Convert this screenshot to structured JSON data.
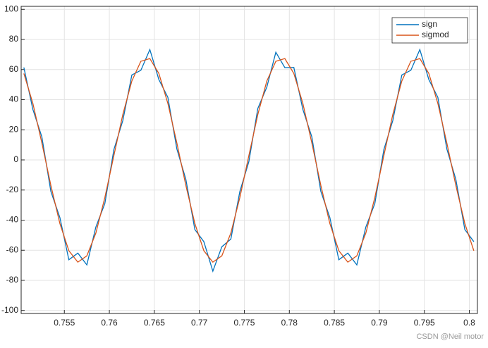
{
  "chart_data": {
    "type": "line",
    "x": [
      0.7505,
      0.7515,
      0.7525,
      0.7535,
      0.7545,
      0.7555,
      0.7565,
      0.7575,
      0.7585,
      0.7595,
      0.7605,
      0.7615,
      0.7625,
      0.7635,
      0.7645,
      0.7655,
      0.7665,
      0.7675,
      0.7685,
      0.7695,
      0.7705,
      0.7715,
      0.7725,
      0.7735,
      0.7745,
      0.7755,
      0.7765,
      0.7775,
      0.7785,
      0.7795,
      0.7805,
      0.7815,
      0.7825,
      0.7835,
      0.7845,
      0.7855,
      0.7865,
      0.7875,
      0.7885,
      0.7895,
      0.7905,
      0.7915,
      0.7925,
      0.7935,
      0.7945,
      0.7955,
      0.7965,
      0.7975,
      0.7985,
      0.7995,
      0.8005
    ],
    "series": [
      {
        "name": "sign",
        "color": "#0072BD",
        "values": [
          61.4,
          33.6,
          15.3,
          -20.9,
          -38.2,
          -66.3,
          -61.9,
          -69.7,
          -44.6,
          -29.0,
          6.8,
          26.2,
          56.4,
          59.5,
          73.3,
          53.4,
          41.6,
          7.3,
          -12.9,
          -46.2,
          -54.3,
          -73.9,
          -57.7,
          -52.6,
          -21.0,
          -1.2,
          34.2,
          48.4,
          71.5,
          61.3,
          61.4,
          33.6,
          15.3,
          -20.9,
          -38.2,
          -66.3,
          -61.9,
          -69.7,
          -44.6,
          -29.0,
          6.8,
          26.2,
          56.4,
          59.5,
          73.3,
          53.4,
          41.6,
          7.3,
          -12.9,
          -46.2,
          -54.3
        ]
      },
      {
        "name": "sigmod",
        "color": "#D95319",
        "values": [
          57.4,
          37.6,
          11.3,
          -16.9,
          -42.2,
          -60.3,
          -67.9,
          -63.7,
          -48.6,
          -25.0,
          2.8,
          30.2,
          52.4,
          65.5,
          67.3,
          57.4,
          37.6,
          11.3,
          -16.9,
          -42.2,
          -60.3,
          -67.9,
          -63.7,
          -48.6,
          -25.0,
          2.8,
          30.2,
          52.4,
          65.5,
          67.3,
          57.4,
          37.6,
          11.3,
          -16.9,
          -42.2,
          -60.3,
          -67.9,
          -63.7,
          -48.6,
          -25.0,
          2.8,
          30.2,
          52.4,
          65.5,
          67.3,
          57.4,
          37.6,
          11.3,
          -16.9,
          -42.2,
          -60.3
        ]
      }
    ],
    "xlim": [
      0.7502,
      0.8009
    ],
    "ylim": [
      -102,
      102
    ],
    "xticks": [
      0.755,
      0.76,
      0.765,
      0.77,
      0.775,
      0.78,
      0.785,
      0.79,
      0.795,
      0.8
    ],
    "yticks": [
      -100,
      -80,
      -60,
      -40,
      -20,
      0,
      20,
      40,
      60,
      80,
      100
    ],
    "grid": true,
    "legend": "upper-right",
    "watermark": "CSDN @Neil motor"
  }
}
